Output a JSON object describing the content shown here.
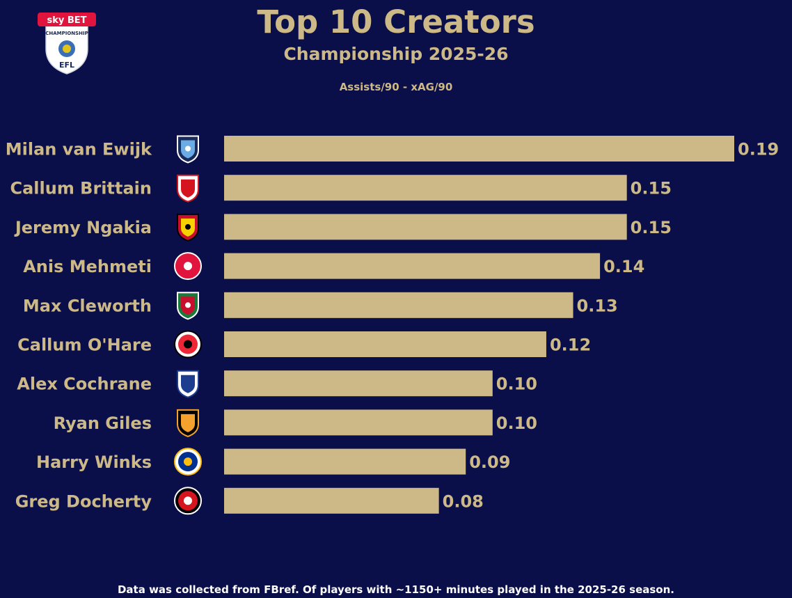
{
  "logo": {
    "brand_text": "sky BET",
    "competition_text": "CHAMPIONSHIP",
    "league_text": "EFL",
    "colors": {
      "sky_red": "#e0143c",
      "shield": "#ffffff",
      "ball_blue": "#3a6fb5"
    }
  },
  "colors": {
    "background": "#0a0f4a",
    "bar": "#cdb987",
    "label": "#cdb987",
    "footer_text": "#ffffff"
  },
  "chart_data": {
    "type": "bar",
    "orientation": "horizontal",
    "title": "Top 10 Creators",
    "subtitle": "Championship 2025-26",
    "metric_label": "Assists/90 - xAG/90",
    "categories": [
      "Milan van Ewijk",
      "Callum Brittain",
      "Jeremy Ngakia",
      "Anis Mehmeti",
      "Max Cleworth",
      "Callum O'Hare",
      "Alex Cochrane",
      "Ryan Giles",
      "Harry Winks",
      "Greg Docherty"
    ],
    "values": [
      0.19,
      0.15,
      0.15,
      0.14,
      0.13,
      0.12,
      0.1,
      0.1,
      0.09,
      0.08
    ],
    "value_labels": [
      "0.19",
      "0.15",
      "0.15",
      "0.14",
      "0.13",
      "0.12",
      "0.10",
      "0.10",
      "0.09",
      "0.08"
    ],
    "xlim": [
      0,
      0.19
    ],
    "club_badges": [
      {
        "club": "coventry-city",
        "icon": "coventry-badge-icon",
        "colors": [
          "#6cace4",
          "#1a2a5a",
          "#ffffff"
        ]
      },
      {
        "club": "middlesbrough",
        "icon": "middlesbrough-badge-icon",
        "colors": [
          "#d4141e",
          "#ffffff",
          "#d4141e"
        ]
      },
      {
        "club": "watford",
        "icon": "watford-badge-icon",
        "colors": [
          "#f7d100",
          "#c8102e",
          "#000000"
        ]
      },
      {
        "club": "bristol-city",
        "icon": "bristol-city-badge-icon",
        "colors": [
          "#e0143c",
          "#ffffff",
          "#e0143c"
        ]
      },
      {
        "club": "wrexham",
        "icon": "wrexham-badge-icon",
        "colors": [
          "#c8102e",
          "#1b7a3b",
          "#ffffff"
        ]
      },
      {
        "club": "sheffield-united",
        "icon": "sheffield-united-badge-icon",
        "colors": [
          "#ee2737",
          "#000000",
          "#ffffff"
        ]
      },
      {
        "club": "birmingham-city",
        "icon": "birmingham-city-badge-icon",
        "colors": [
          "#1d3e8e",
          "#ffffff",
          "#1d3e8e"
        ]
      },
      {
        "club": "hull-city",
        "icon": "hull-city-badge-icon",
        "colors": [
          "#f5a12d",
          "#000000",
          "#f5a12d"
        ]
      },
      {
        "club": "leicester-city",
        "icon": "leicester-city-badge-icon",
        "colors": [
          "#003090",
          "#fdbe11",
          "#ffffff"
        ]
      },
      {
        "club": "charlton-athletic",
        "icon": "charlton-athletic-badge-icon",
        "colors": [
          "#d4141e",
          "#ffffff",
          "#000000"
        ]
      }
    ]
  },
  "footer": {
    "note": "Data was collected from FBref. Of players with ~1150+ minutes played in the 2025-26 season."
  }
}
